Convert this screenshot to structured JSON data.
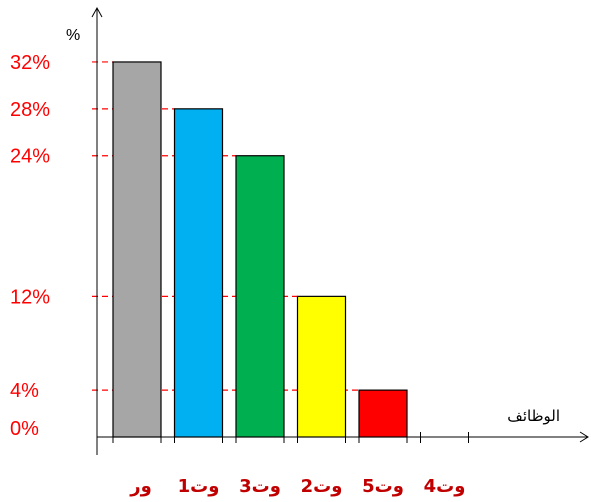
{
  "chart_data": {
    "type": "bar",
    "xlabel": "الوظائف",
    "ylabel": "%",
    "categories": [
      "ور",
      "وت1",
      "وت3",
      "وت2",
      "وت5",
      "وت4"
    ],
    "values": [
      32,
      28,
      24,
      12,
      4,
      0
    ],
    "colors": [
      "#a6a6a6",
      "#00b0f0",
      "#00b050",
      "#ffff00",
      "#ff0000",
      "#ffffff"
    ],
    "y_tick_labels": [
      "0%",
      "4%",
      "12%",
      "24%",
      "28%",
      "32%"
    ],
    "y_tick_values": [
      0,
      4,
      12,
      24,
      28,
      32
    ],
    "guide_line_color": "#ff0000",
    "grid": false,
    "legend": "none"
  }
}
